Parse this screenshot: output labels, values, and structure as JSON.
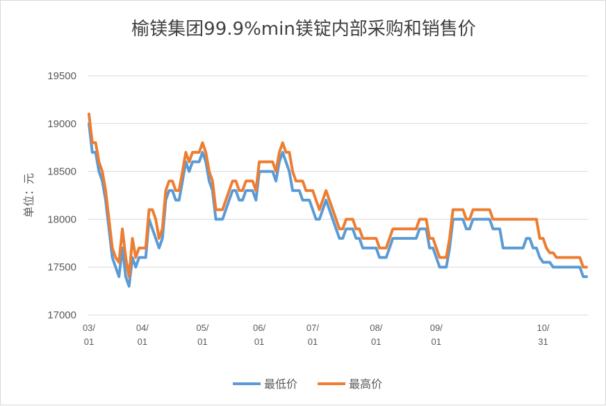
{
  "chart_data": {
    "type": "line",
    "title": "榆镁集团99.9%min镁锭内部采购和销售价",
    "xlabel": "",
    "ylabel": "单位：元",
    "ylim": [
      17000,
      19500
    ],
    "yticks": [
      17000,
      17500,
      18000,
      18500,
      19000,
      19500
    ],
    "x_tick_labels": [
      {
        "top": "03/",
        "bottom": "01",
        "index": 0
      },
      {
        "top": "04/",
        "bottom": "01",
        "index": 16
      },
      {
        "top": "05/",
        "bottom": "01",
        "index": 34
      },
      {
        "top": "06/",
        "bottom": "01",
        "index": 51
      },
      {
        "top": "07/",
        "bottom": "01",
        "index": 67
      },
      {
        "top": "08/",
        "bottom": "01",
        "index": 86
      },
      {
        "top": "09/",
        "bottom": "01",
        "index": 104
      },
      {
        "top": "10/",
        "bottom": "31",
        "index": 136
      }
    ],
    "grid": true,
    "legend_position": "bottom",
    "series": [
      {
        "name": "最低价",
        "color": "#5b9bd5",
        "values": [
          19000,
          18700,
          18700,
          18500,
          18400,
          18200,
          17900,
          17600,
          17500,
          17400,
          17700,
          17400,
          17300,
          17600,
          17500,
          17600,
          17600,
          17600,
          18000,
          17900,
          17800,
          17700,
          17800,
          18200,
          18300,
          18300,
          18200,
          18200,
          18400,
          18600,
          18500,
          18600,
          18600,
          18600,
          18700,
          18600,
          18400,
          18300,
          18000,
          18000,
          18000,
          18100,
          18200,
          18300,
          18300,
          18200,
          18200,
          18300,
          18300,
          18300,
          18200,
          18500,
          18500,
          18500,
          18500,
          18500,
          18400,
          18600,
          18700,
          18600,
          18500,
          18300,
          18300,
          18300,
          18200,
          18200,
          18200,
          18100,
          18000,
          18000,
          18100,
          18200,
          18100,
          18000,
          17900,
          17800,
          17800,
          17900,
          17900,
          17900,
          17800,
          17800,
          17700,
          17700,
          17700,
          17700,
          17700,
          17600,
          17600,
          17600,
          17700,
          17800,
          17800,
          17800,
          17800,
          17800,
          17800,
          17800,
          17800,
          17900,
          17900,
          17900,
          17700,
          17700,
          17600,
          17500,
          17500,
          17500,
          17700,
          18000,
          18000,
          18000,
          18000,
          17900,
          17900,
          18000,
          18000,
          18000,
          18000,
          18000,
          18000,
          17900,
          17900,
          17900,
          17700,
          17700,
          17700,
          17700,
          17700,
          17700,
          17700,
          17800,
          17800,
          17700,
          17700,
          17600,
          17550,
          17550,
          17550,
          17500,
          17500,
          17500,
          17500,
          17500,
          17500,
          17500,
          17500,
          17500,
          17400,
          17400
        ]
      },
      {
        "name": "最高价",
        "color": "#ed7d31",
        "values": [
          19100,
          18800,
          18800,
          18600,
          18500,
          18300,
          18000,
          17700,
          17600,
          17550,
          17900,
          17600,
          17400,
          17800,
          17600,
          17700,
          17700,
          17700,
          18100,
          18100,
          18000,
          17800,
          17900,
          18300,
          18400,
          18400,
          18300,
          18300,
          18500,
          18700,
          18600,
          18700,
          18700,
          18700,
          18800,
          18700,
          18500,
          18400,
          18100,
          18100,
          18100,
          18200,
          18300,
          18400,
          18400,
          18300,
          18300,
          18400,
          18400,
          18400,
          18300,
          18600,
          18600,
          18600,
          18600,
          18600,
          18500,
          18700,
          18800,
          18700,
          18700,
          18500,
          18400,
          18400,
          18400,
          18300,
          18300,
          18300,
          18200,
          18100,
          18200,
          18300,
          18200,
          18100,
          18000,
          17900,
          17900,
          18000,
          18000,
          18000,
          17900,
          17900,
          17800,
          17800,
          17800,
          17800,
          17800,
          17700,
          17700,
          17700,
          17800,
          17900,
          17900,
          17900,
          17900,
          17900,
          17900,
          17900,
          17900,
          18000,
          18000,
          18000,
          17800,
          17800,
          17700,
          17600,
          17600,
          17600,
          17800,
          18100,
          18100,
          18100,
          18100,
          18000,
          18000,
          18100,
          18100,
          18100,
          18100,
          18100,
          18100,
          18000,
          18000,
          18000,
          18000,
          18000,
          18000,
          18000,
          18000,
          18000,
          18000,
          18000,
          18000,
          18000,
          18000,
          17800,
          17800,
          17700,
          17650,
          17650,
          17600,
          17600,
          17600,
          17600,
          17600,
          17600,
          17600,
          17600,
          17500,
          17500
        ]
      }
    ]
  }
}
